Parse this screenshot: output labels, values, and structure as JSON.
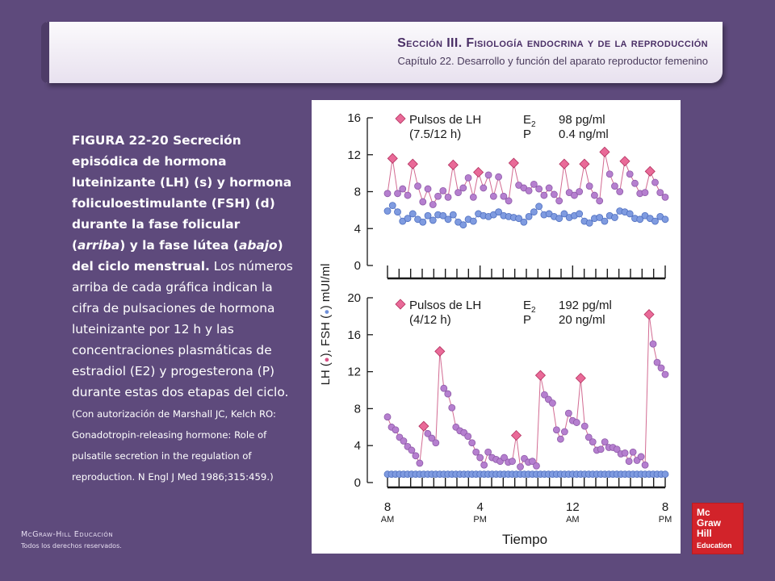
{
  "header": {
    "section": "Sección III. Fisiología endocrina y de la reproducción",
    "chapter": "Capítulo 22. Desarrollo y función del aparato reproductor femenino"
  },
  "caption": {
    "figure_label": "FIGURA 22-20 Secreción episódica de hormona luteinizante (LH) (s) y hormona foliculoestimulante (FSH) (d) durante la fase folicular",
    "paren_open": "(",
    "arriba": "arriba",
    "mid1": ") y la fase lútea (",
    "abajo": "abajo",
    "mid2": ") del ciclo menstrual.",
    "body": " Los números arriba de cada gráfica indican la cifra de pulsaciones de hormona luteinizante por 12 h y las concentraciones plasmáticas de estradiol (E2) y progesterona (P) durante estas dos etapas del ciclo.",
    "source": " (Con autorización de Marshall JC, Kelch RO: Gonadotropin-releasing hormone: Role of pulsatile secretion in the regulation of reproduction. N Engl J Med 1986;315:459.)"
  },
  "footer": {
    "brand": "McGraw-Hill Educación",
    "rights": "Todos los derechos reservados."
  },
  "logo": {
    "line1": "Mc",
    "line2": "Graw",
    "line3": "Hill",
    "line4": "Education"
  },
  "chart_data": [
    {
      "type": "line",
      "panel": "top",
      "ylim": [
        0,
        16
      ],
      "yticks": [
        0,
        4,
        8,
        12,
        16
      ],
      "legend": {
        "label1": "Pulsos de LH",
        "label2": "(7.5/12 h)",
        "e_label": "E",
        "e_sub": "2",
        "p_label": "P",
        "e_value": "98 pg/ml",
        "p_value": "0.4 ng/ml"
      },
      "series": [
        {
          "name": "LH",
          "color": "#d94f84",
          "values": [
            7.8,
            11.6,
            7.8,
            8.3,
            7.6,
            11.0,
            8.6,
            6.9,
            8.3,
            6.6,
            7.5,
            8.1,
            7.4,
            10.9,
            7.9,
            8.4,
            9.5,
            7.4,
            10.1,
            8.4,
            9.8,
            7.5,
            9.6,
            7.5,
            7.0,
            11.1,
            8.7,
            8.4,
            8.1,
            8.8,
            8.3,
            7.6,
            8.4,
            7.7,
            7.0,
            11.0,
            7.9,
            7.6,
            8.0,
            11.0,
            8.6,
            7.6,
            7.0,
            12.3,
            9.9,
            8.6,
            8.0,
            11.3,
            9.9,
            8.9,
            7.8,
            7.9,
            10.2,
            9.0,
            7.9,
            7.4
          ]
        },
        {
          "name": "FSH",
          "color": "#6f8fd8",
          "values": [
            5.9,
            6.5,
            5.8,
            4.8,
            5.1,
            5.6,
            5.0,
            4.7,
            5.4,
            4.9,
            5.5,
            5.4,
            5.0,
            5.5,
            4.7,
            4.4,
            5.0,
            4.8,
            5.6,
            5.4,
            5.3,
            5.5,
            5.8,
            5.4,
            5.3,
            5.2,
            5.1,
            4.7,
            5.3,
            5.8,
            6.4,
            5.5,
            5.6,
            5.3,
            5.1,
            5.6,
            5.2,
            5.4,
            5.6,
            4.8,
            4.6,
            5.1,
            5.2,
            4.8,
            5.4,
            5.2,
            5.9,
            5.8,
            5.6,
            5.1,
            5.0,
            5.4,
            5.1,
            4.8,
            5.3,
            5.0
          ]
        }
      ]
    },
    {
      "type": "line",
      "panel": "bottom",
      "ylim": [
        0,
        20
      ],
      "yticks": [
        0,
        4,
        8,
        12,
        16,
        20
      ],
      "x_tick_labels": [
        "8",
        "4",
        "12",
        "8"
      ],
      "x_tick_sublabels": [
        "AM",
        "PM",
        "AM",
        "PM"
      ],
      "xlabel": "Tiempo",
      "ylabel_parts": [
        "LH (",
        "), FSH (",
        ") mUI/ml"
      ],
      "legend": {
        "label1": "Pulsos de LH",
        "label2": "(4/12 h)",
        "e_label": "E",
        "e_sub": "2",
        "p_label": "P",
        "e_value": "192 pg/ml",
        "p_value": "20 ng/ml"
      },
      "series": [
        {
          "name": "LH",
          "color": "#d94f84",
          "values": [
            7.1,
            6.0,
            5.7,
            4.9,
            4.5,
            3.9,
            3.5,
            2.9,
            2.1,
            6.1,
            5.3,
            4.8,
            4.3,
            14.2,
            10.2,
            9.6,
            8.1,
            6.0,
            5.6,
            5.4,
            5.0,
            4.3,
            3.3,
            2.7,
            1.9,
            3.3,
            2.7,
            2.5,
            2.3,
            2.7,
            2.2,
            2.3,
            5.1,
            1.7,
            2.6,
            2.2,
            2.3,
            1.8,
            11.6,
            9.5,
            9.0,
            8.6,
            5.7,
            4.7,
            5.5,
            7.5,
            6.7,
            6.5,
            11.3,
            6.1,
            4.9,
            4.4,
            3.5,
            3.6,
            4.4,
            3.8,
            3.8,
            3.6,
            3.1,
            3.2,
            2.3,
            3.3,
            2.4,
            2.8,
            1.9,
            18.2,
            15.0,
            13.0,
            12.4,
            11.7
          ]
        },
        {
          "name": "FSH",
          "color": "#6f8fd8",
          "values": [
            0.9,
            0.9,
            0.9,
            0.9,
            0.9,
            0.9,
            0.9,
            0.9,
            0.9,
            0.9,
            0.9,
            0.9,
            0.9,
            0.9,
            0.9,
            0.9,
            0.9,
            0.9,
            0.9,
            0.9,
            0.9,
            0.9,
            0.9,
            0.9,
            0.9,
            0.9,
            0.9,
            0.9,
            0.9,
            0.9,
            0.9,
            0.9,
            0.9,
            0.9,
            0.9,
            0.9,
            0.9,
            0.9,
            0.9,
            0.9,
            0.9,
            0.9,
            0.9,
            0.9,
            0.9,
            0.9,
            0.9,
            0.9,
            0.9,
            0.9,
            0.9,
            0.9,
            0.9,
            0.9,
            0.9,
            0.9,
            0.9,
            0.9,
            0.9,
            0.9,
            0.9,
            0.9,
            0.9,
            0.9,
            0.9,
            0.9,
            0.9,
            0.9,
            0.9,
            0.9
          ]
        }
      ]
    }
  ]
}
